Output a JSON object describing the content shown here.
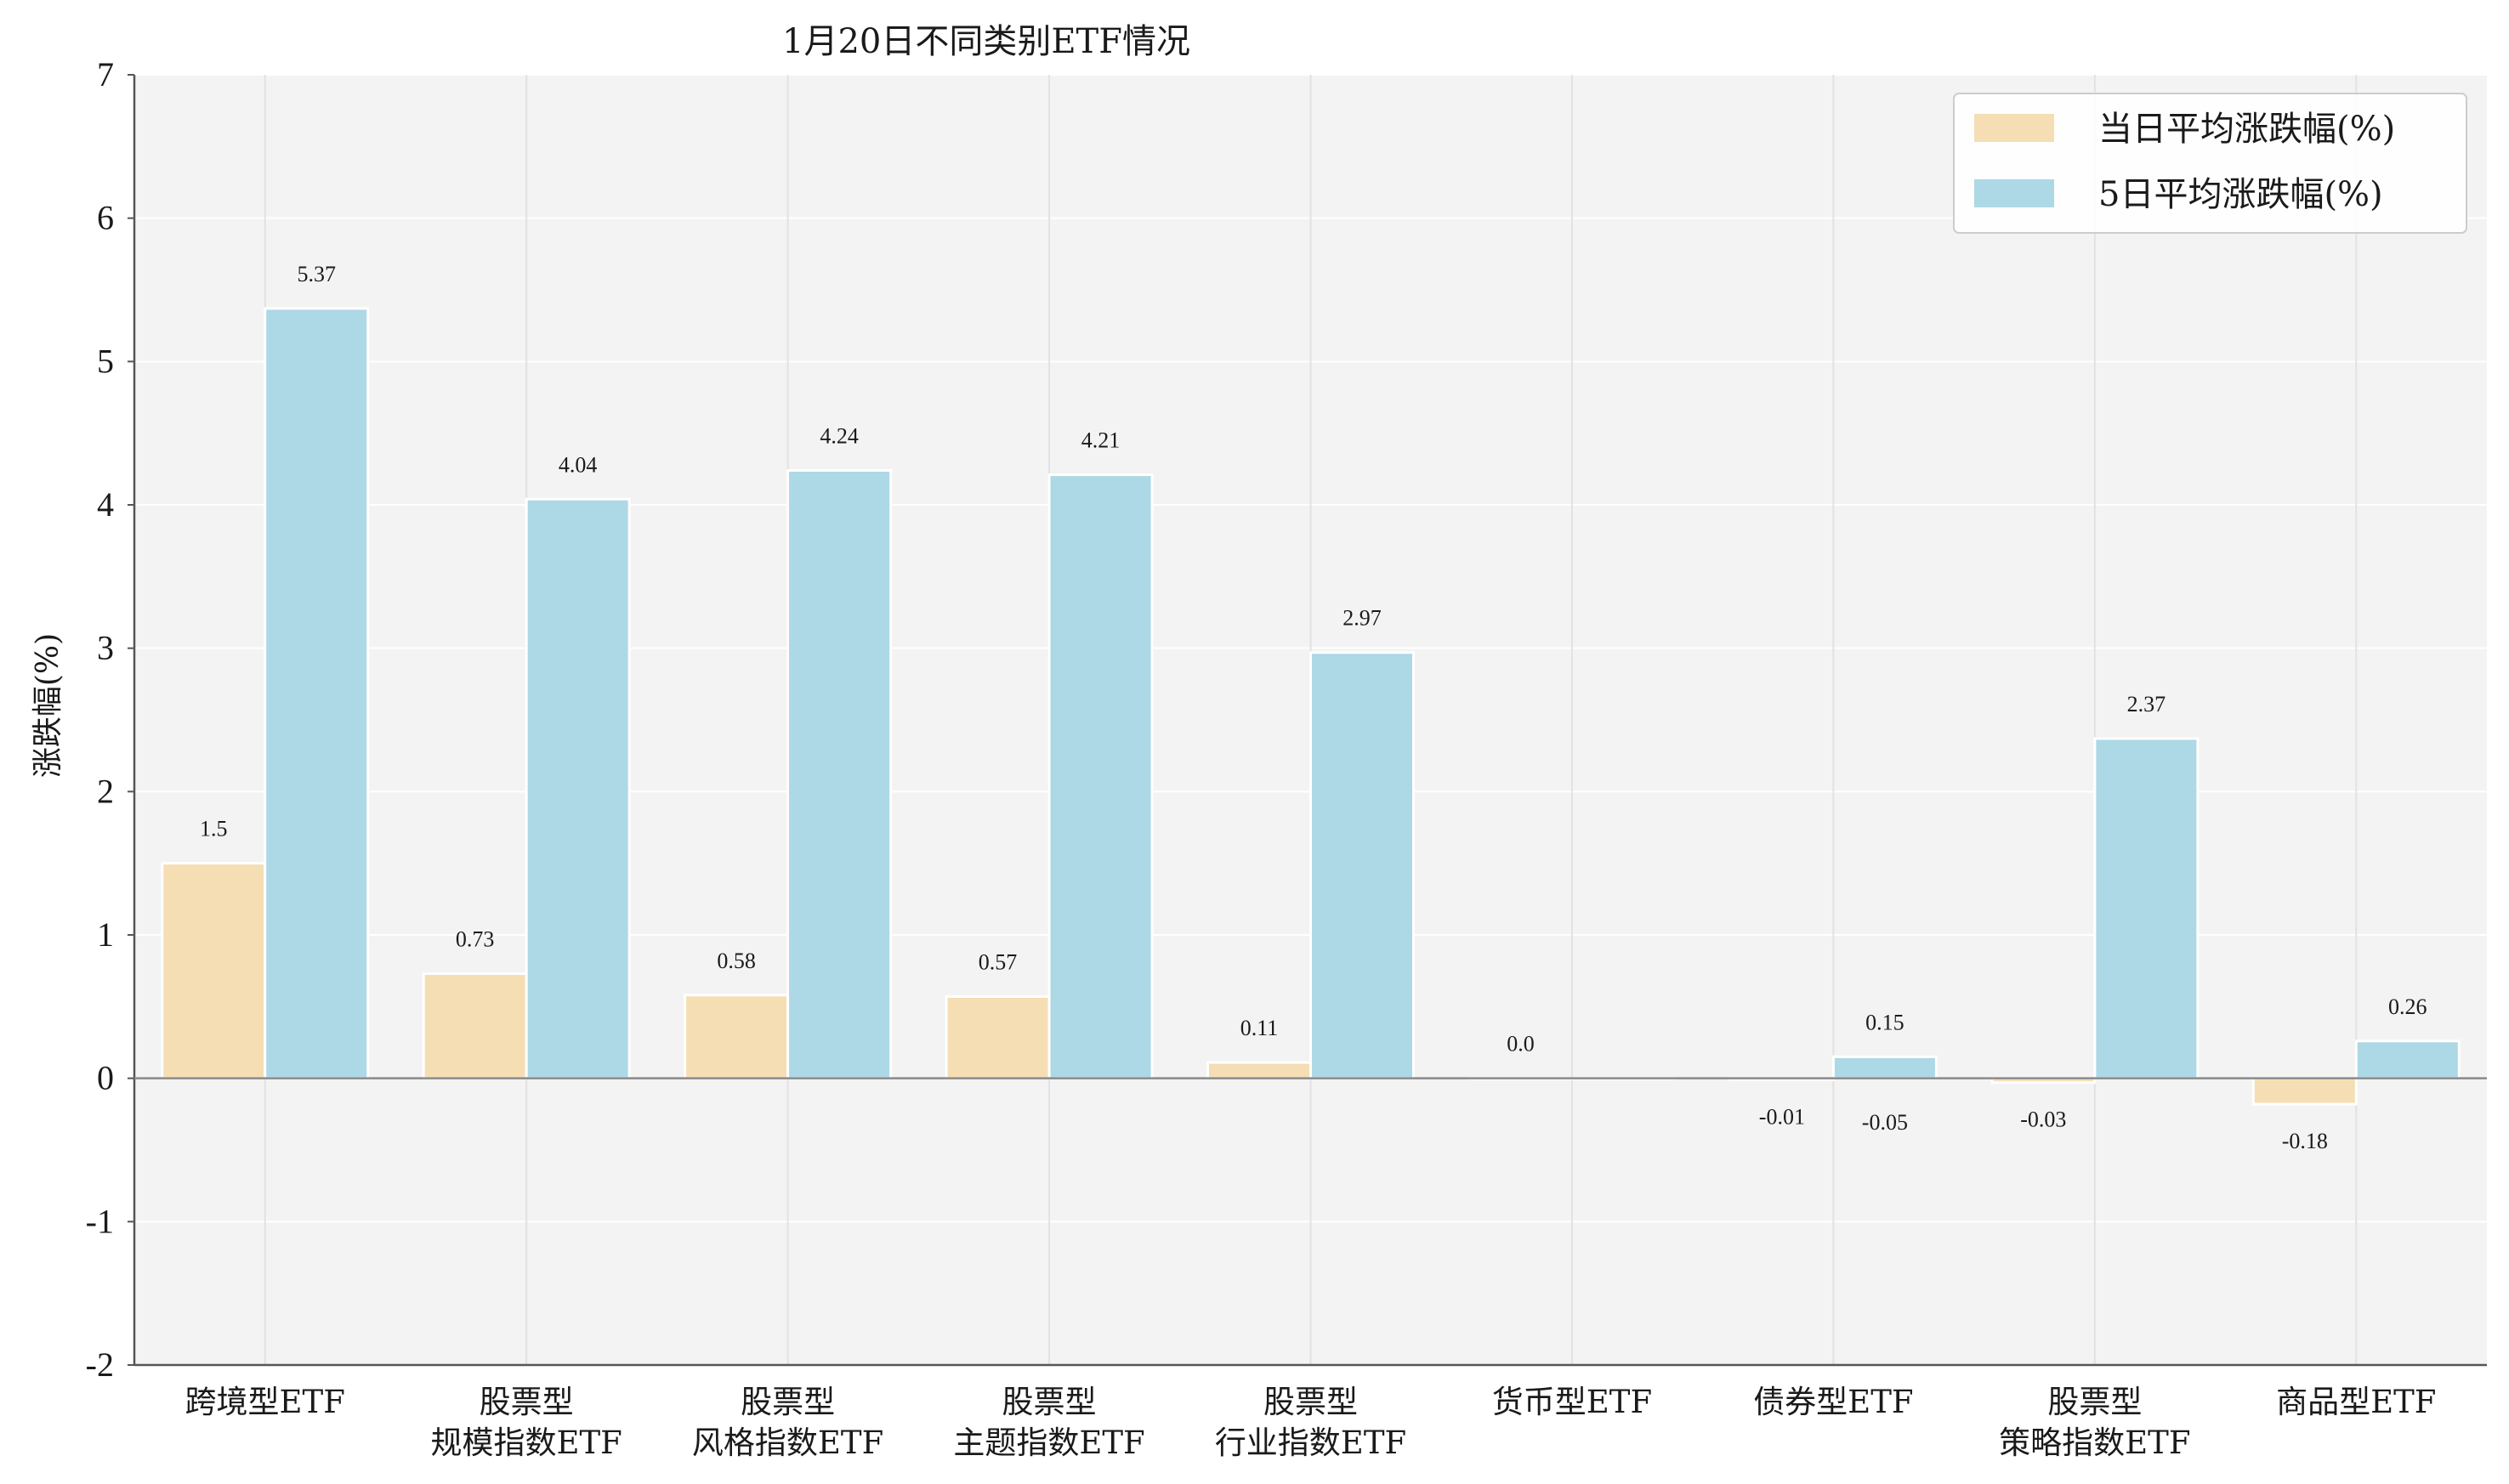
{
  "chart_data": {
    "type": "bar",
    "title": "1月20日不同类别ETF情况",
    "xlabel": "",
    "ylabel": "涨跌幅(%)",
    "ylim": [
      -2,
      7
    ],
    "yticks": [
      -2,
      -1,
      0,
      1,
      2,
      3,
      4,
      5,
      6,
      7
    ],
    "grid": true,
    "legend_position": "top-right",
    "categories": [
      [
        "跨境型ETF"
      ],
      [
        "股票型",
        "规模指数ETF"
      ],
      [
        "股票型",
        "风格指数ETF"
      ],
      [
        "股票型",
        "主题指数ETF"
      ],
      [
        "股票型",
        "行业指数ETF"
      ],
      [
        "货币型ETF"
      ],
      [
        "债券型ETF"
      ],
      [
        "股票型",
        "策略指数ETF"
      ],
      [
        "商品型ETF"
      ]
    ],
    "series": [
      {
        "name": "当日平均涨跌幅(%)",
        "color": "#f5deb3",
        "values": [
          1.5,
          0.73,
          0.58,
          0.57,
          0.11,
          0.0,
          -0.01,
          -0.03,
          -0.18
        ],
        "labels": [
          "1.5",
          "0.73",
          "0.58",
          "0.57",
          "0.11",
          "0.0",
          "-0.01",
          "-0.03",
          "-0.18"
        ]
      },
      {
        "name": "5日平均涨跌幅(%)",
        "color": "#add8e6",
        "values": [
          5.37,
          4.04,
          4.24,
          4.21,
          2.97,
          0.0,
          0.15,
          2.37,
          0.26
        ],
        "labels": [
          "5.37",
          "4.04",
          "4.24",
          "4.21",
          "2.97",
          "",
          "0.15",
          "2.37",
          "0.26"
        ]
      }
    ],
    "extra_labels": [
      "-0.05"
    ]
  }
}
